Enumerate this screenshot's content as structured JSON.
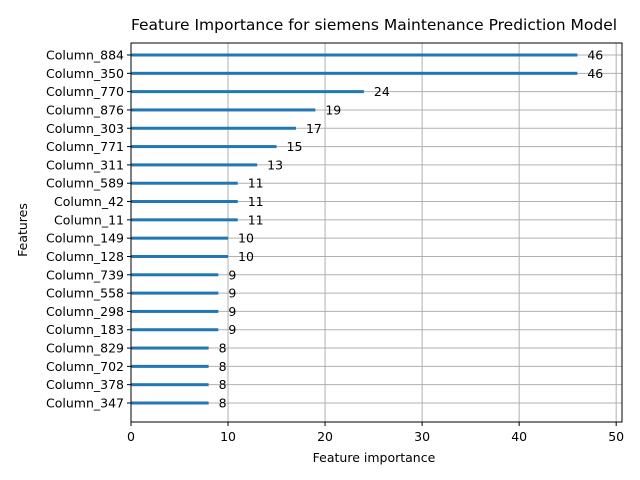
{
  "chart_data": {
    "type": "bar",
    "orientation": "horizontal",
    "title": "Feature Importance for siemens Maintenance Prediction Model",
    "xlabel": "Feature importance",
    "ylabel": "Features",
    "xlim": [
      0,
      50.6
    ],
    "xticks": [
      0,
      10,
      20,
      30,
      40,
      50
    ],
    "grid": true,
    "categories": [
      "Column_884",
      "Column_350",
      "Column_770",
      "Column_876",
      "Column_303",
      "Column_771",
      "Column_311",
      "Column_589",
      "Column_42",
      "Column_11",
      "Column_149",
      "Column_128",
      "Column_739",
      "Column_558",
      "Column_298",
      "Column_183",
      "Column_829",
      "Column_702",
      "Column_378",
      "Column_347"
    ],
    "values": [
      46,
      46,
      24,
      19,
      17,
      15,
      13,
      11,
      11,
      11,
      10,
      10,
      9,
      9,
      9,
      9,
      8,
      8,
      8,
      8
    ],
    "colors": {
      "bar": "#1f77b4",
      "grid": "#b0b0b0",
      "axis": "#000000"
    }
  }
}
